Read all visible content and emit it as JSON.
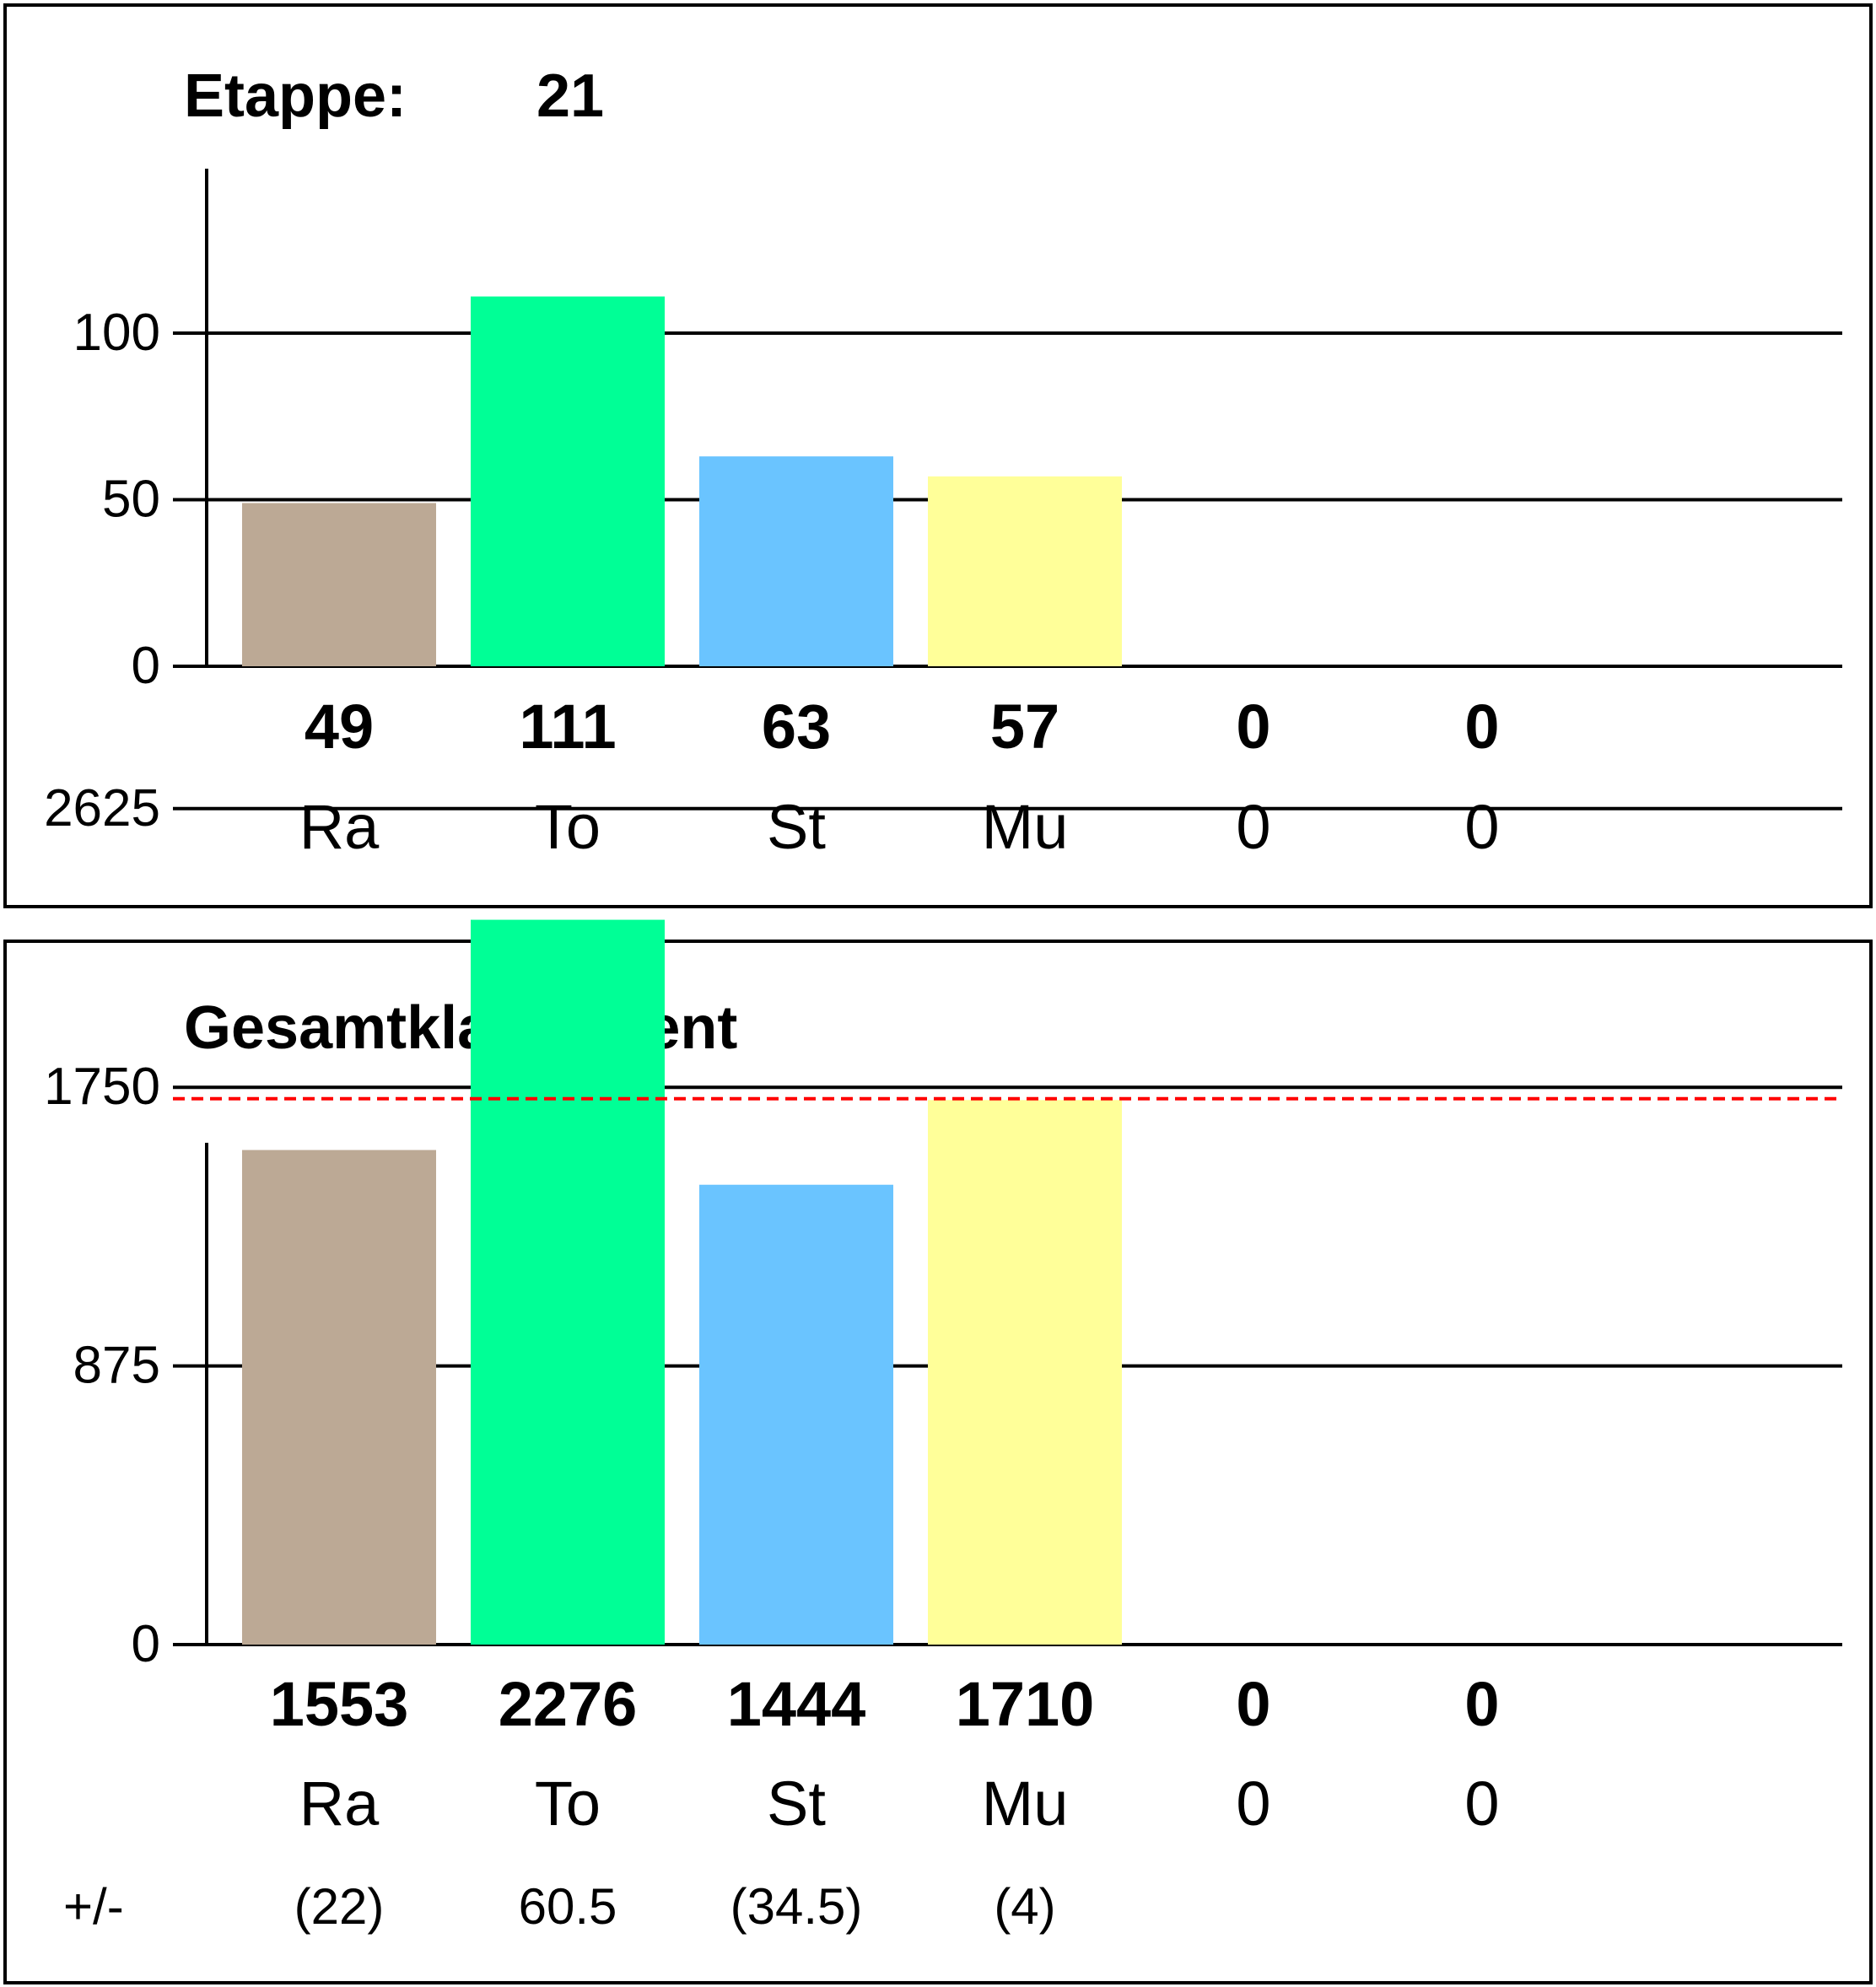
{
  "chart_data": [
    {
      "type": "bar",
      "title": "Etappe:",
      "title_value": "21",
      "categories": [
        "Ra",
        "To",
        "St",
        "Mu",
        "0",
        "0"
      ],
      "values": [
        49,
        111,
        63,
        57,
        0,
        0
      ],
      "value_labels": [
        "49",
        "111",
        "63",
        "57",
        "0",
        "0"
      ],
      "colors": [
        "#bca995",
        "#00ff96",
        "#6ac4ff",
        "#ffff99",
        "#cccccc",
        "#cccccc"
      ],
      "yticks": [
        0,
        50,
        100
      ],
      "ytick_labels": [
        "0",
        "50",
        "100"
      ],
      "ylim": [
        0,
        140
      ],
      "grid": true
    },
    {
      "type": "bar",
      "title": "Gesamtklassament",
      "categories": [
        "Ra",
        "To",
        "St",
        "Mu",
        "0",
        "0"
      ],
      "values": [
        1553,
        2276,
        1444,
        1710,
        0,
        0
      ],
      "value_labels": [
        "1553",
        "2276",
        "1444",
        "1710",
        "0",
        "0"
      ],
      "colors": [
        "#bca995",
        "#00ff96",
        "#6ac4ff",
        "#ffff99",
        "#cccccc",
        "#cccccc"
      ],
      "yticks": [
        0,
        875,
        1750,
        2625
      ],
      "ytick_labels": [
        "0",
        "875",
        "1750",
        "2625"
      ],
      "ylim": [
        0,
        2625
      ],
      "grid": true,
      "reference_line": {
        "value": 1714,
        "color": "#ff0000",
        "style": "dashed"
      },
      "delta_label": "+/-",
      "deltas": [
        "(22)",
        "60.5",
        "(34.5)",
        "(4)",
        "",
        ""
      ]
    }
  ]
}
